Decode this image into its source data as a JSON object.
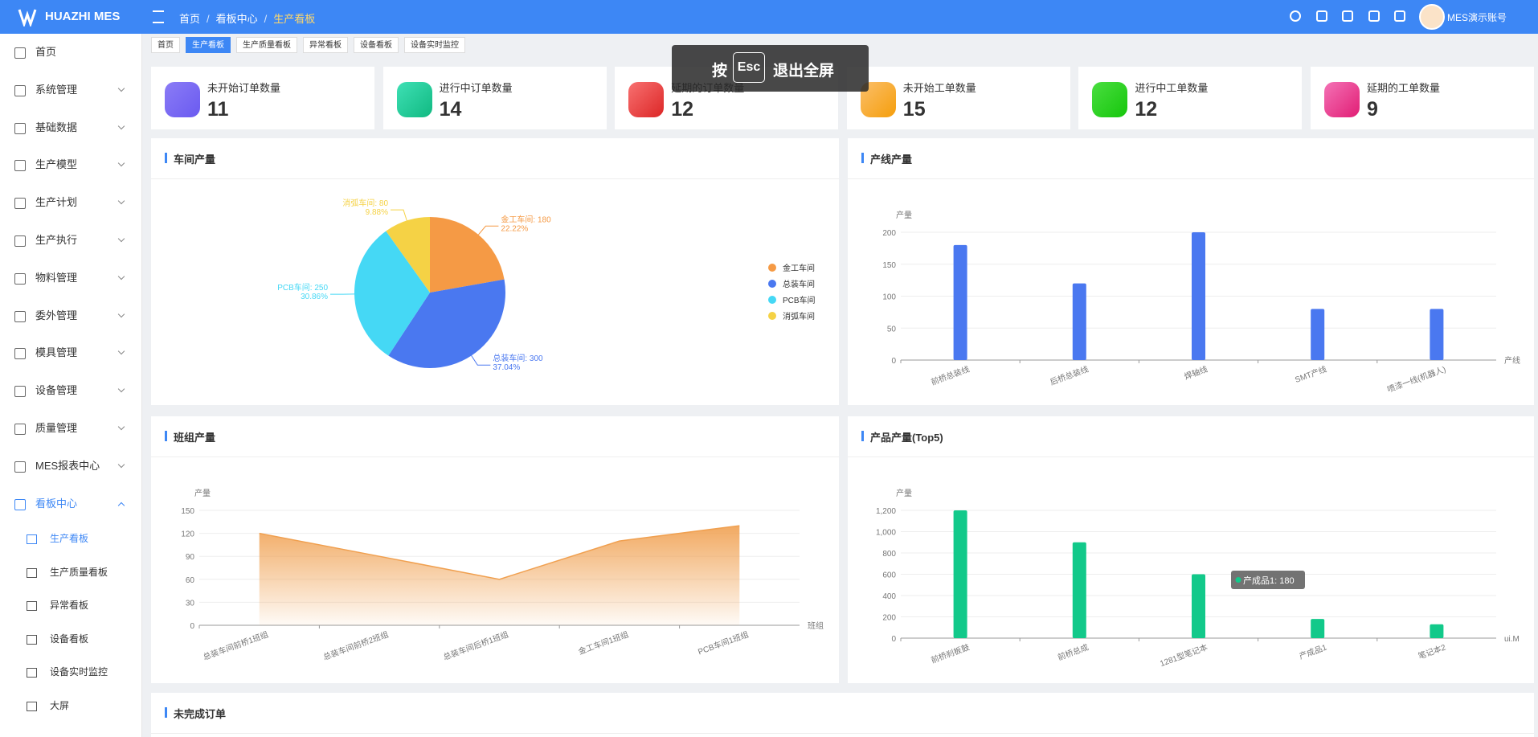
{
  "header": {
    "logo": "HUAZHI MES",
    "breadcrumb": [
      "首页",
      "看板中心",
      "生产看板"
    ],
    "user": "MES演示账号"
  },
  "sidebar": {
    "items": [
      "首页",
      "系统管理",
      "基础数据",
      "生产模型",
      "生产计划",
      "生产执行",
      "物料管理",
      "委外管理",
      "模具管理",
      "设备管理",
      "质量管理",
      "MES报表中心",
      "看板中心"
    ],
    "sub_items": [
      "生产看板",
      "生产质量看板",
      "异常看板",
      "设备看板",
      "设备实时监控",
      "大屏"
    ]
  },
  "tabs": [
    "首页",
    "生产看板",
    "生产质量看板",
    "异常看板",
    "设备看板",
    "设备实时监控"
  ],
  "stats": [
    {
      "label": "未开始订单数量",
      "value": 11
    },
    {
      "label": "进行中订单数量",
      "value": 14
    },
    {
      "label": "延期的订单数量",
      "value": 12
    },
    {
      "label": "未开始工单数量",
      "value": 15
    },
    {
      "label": "进行中工单数量",
      "value": 12
    },
    {
      "label": "延期的工单数量",
      "value": 9
    }
  ],
  "fullscreen_hint": {
    "prefix": "按",
    "key": "Esc",
    "text": "退出全屏"
  },
  "chart_data": [
    {
      "type": "pie",
      "title": "车间产量",
      "categories": [
        "金工车间",
        "总装车间",
        "PCB车间",
        "消弧车间"
      ],
      "values": [
        180,
        300,
        250,
        80
      ],
      "value_labels": [
        "金工车间: 180",
        "总装车间: 300",
        "PCB车间: 250",
        "消弧车间: 80"
      ],
      "percent_labels": [
        "22.22%",
        "37.04%",
        "30.86%",
        "9.88%"
      ],
      "colors": [
        "#f59a45",
        "#4a78f0",
        "#45d8f5",
        "#f5d245"
      ],
      "legend": "right"
    },
    {
      "type": "bar",
      "title": "产线产量",
      "y_label": "产量",
      "x_label": "产线",
      "categories": [
        "前桥总装线",
        "后桥总装线",
        "焊轴线",
        "SMT产线",
        "喷漆一线(机器人)"
      ],
      "values": [
        180,
        120,
        200,
        80,
        80
      ],
      "color": "#4a78f0",
      "ylim": [
        0,
        200
      ],
      "yticks": [
        0,
        50,
        100,
        150,
        200
      ],
      "grid": true
    },
    {
      "type": "area",
      "title": "班组产量",
      "y_label": "产量",
      "x_label": "班组",
      "categories": [
        "总装车间前桥1班组",
        "总装车间前桥2班组",
        "总装车间后桥1班组",
        "金工车间1班组",
        "PCB车间1班组"
      ],
      "values": [
        120,
        90,
        60,
        110,
        130
      ],
      "color": "#f0a050",
      "ylim": [
        0,
        150
      ],
      "yticks": [
        0,
        30,
        60,
        90,
        120,
        150
      ],
      "grid": true
    },
    {
      "type": "bar",
      "title": "产品产量(Top5)",
      "y_label": "产量",
      "x_label": "ui.M",
      "categories": [
        "前桥刹板鼓",
        "前桥总成",
        "1281型笔记本",
        "产成品1",
        "笔记本2"
      ],
      "values": [
        1200,
        900,
        600,
        180,
        130
      ],
      "color": "#12c98a",
      "ylim": [
        0,
        1200
      ],
      "yticks": [
        0,
        200,
        400,
        600,
        800,
        {
          "value": 1000,
          "label": "1,000"
        },
        {
          "value": 1200,
          "label": "1,200"
        }
      ],
      "grid": true,
      "tooltip": "产成品1: 180"
    }
  ],
  "orders_panel": {
    "title": "未完成订单"
  }
}
